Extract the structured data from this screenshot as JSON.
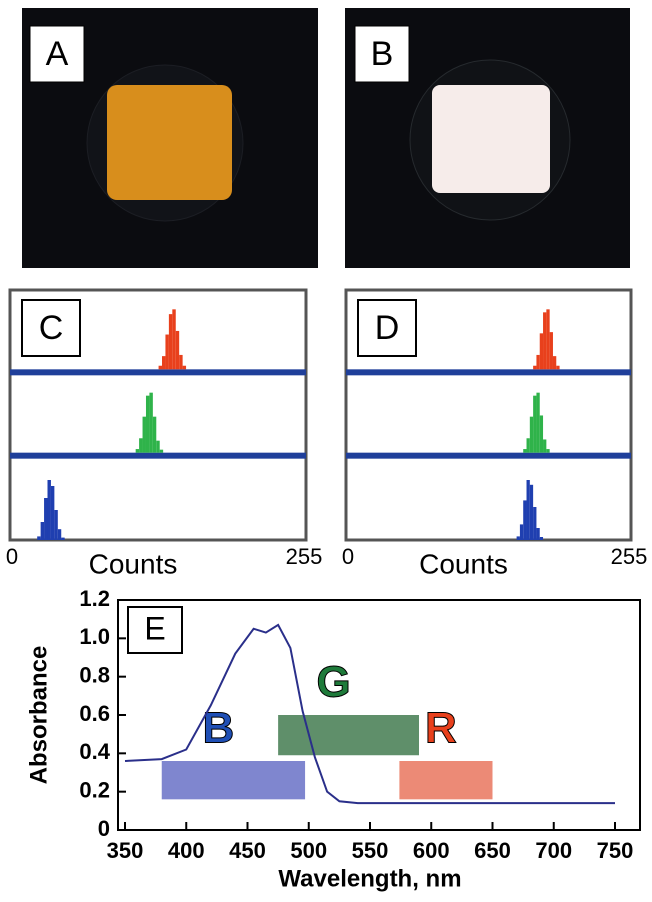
{
  "image_panels": [
    {
      "label": "A"
    },
    {
      "label": "B"
    }
  ],
  "chart_data": [
    {
      "type": "histogram",
      "panel_label": "C",
      "x_label": "Counts",
      "xlim": [
        0,
        255
      ],
      "xticks": [
        0,
        255
      ],
      "series": [
        {
          "color": "#e8401c",
          "bins": [
            128,
            131,
            134,
            137,
            140,
            143,
            146,
            149,
            152
          ],
          "values": [
            6,
            22,
            58,
            92,
            100,
            64,
            24,
            6
          ]
        },
        {
          "color": "#2fb34a",
          "bins": [
            108,
            111,
            114,
            117,
            120,
            123,
            126,
            129,
            132
          ],
          "values": [
            6,
            24,
            60,
            95,
            100,
            60,
            20,
            5
          ]
        },
        {
          "color": "#1f3fb0",
          "bins": [
            22,
            25,
            28,
            31,
            34,
            37,
            40,
            43,
            46
          ],
          "values": [
            6,
            30,
            70,
            100,
            90,
            50,
            18,
            4
          ]
        }
      ]
    },
    {
      "type": "histogram",
      "panel_label": "D",
      "x_label": "Counts",
      "xlim": [
        0,
        255
      ],
      "xticks": [
        0,
        255
      ],
      "series": [
        {
          "color": "#e8401c",
          "bins": [
            168,
            171,
            174,
            177,
            180,
            183,
            186,
            189,
            192
          ],
          "values": [
            6,
            24,
            60,
            95,
            100,
            62,
            22,
            6
          ]
        },
        {
          "color": "#2fb34a",
          "bins": [
            159,
            162,
            165,
            168,
            171,
            174,
            177,
            180,
            183
          ],
          "values": [
            6,
            24,
            60,
            95,
            100,
            62,
            22,
            6
          ]
        },
        {
          "color": "#1f3fb0",
          "bins": [
            153,
            156,
            159,
            162,
            165,
            168,
            171,
            174,
            177
          ],
          "values": [
            6,
            26,
            66,
            100,
            92,
            55,
            20,
            5
          ]
        }
      ]
    },
    {
      "type": "line",
      "panel_label": "E",
      "x_label": "Wavelength, nm",
      "y_label": "Absorbance",
      "xlim": [
        350,
        750
      ],
      "xticks": [
        350,
        400,
        450,
        500,
        550,
        600,
        650,
        700,
        750
      ],
      "ylim": [
        0,
        1.2
      ],
      "yticks": [
        0,
        0.2,
        0.4,
        0.6,
        0.8,
        {
          "value": 1,
          "label": "1.0"
        },
        1.2
      ],
      "series": [
        {
          "color": "#2a2f8a",
          "x": [
            350,
            380,
            400,
            420,
            440,
            455,
            465,
            475,
            485,
            495,
            505,
            515,
            525,
            540,
            600,
            650,
            700,
            750
          ],
          "values": [
            0.36,
            0.37,
            0.42,
            0.65,
            0.92,
            1.05,
            1.03,
            1.07,
            0.95,
            0.62,
            0.38,
            0.2,
            0.15,
            0.14,
            0.14,
            0.14,
            0.14,
            0.14
          ]
        }
      ],
      "bands": [
        {
          "label": "B",
          "color": "#1f4fb5",
          "fill": "#7f86cf",
          "x": [
            380,
            497
          ],
          "y": [
            0.16,
            0.36
          ]
        },
        {
          "label": "G",
          "color": "#1e7a3a",
          "fill": "#5f8f6a",
          "x": [
            475,
            590
          ],
          "y": [
            0.39,
            0.6
          ]
        },
        {
          "label": "R",
          "color": "#e8401c",
          "fill": "#ec8a76",
          "x": [
            574,
            650
          ],
          "y": [
            0.16,
            0.36
          ]
        }
      ]
    }
  ]
}
